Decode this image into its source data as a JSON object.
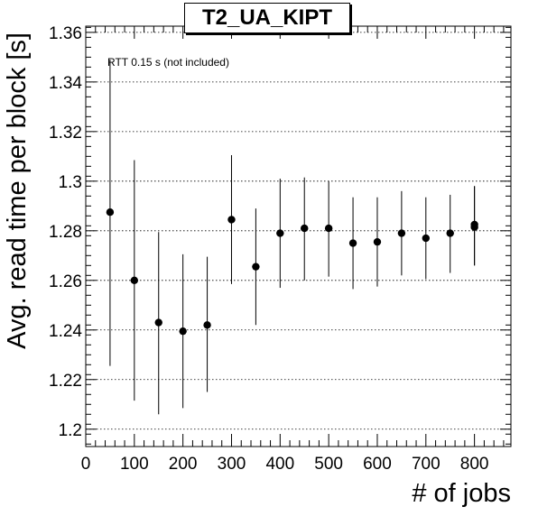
{
  "chart_data": {
    "type": "scatter",
    "title": "T2_UA_KIPT",
    "annotation": "RTT 0.15 s (not included)",
    "xlabel": "# of jobs",
    "ylabel": "Avg. read time per block [s]",
    "xlim": [
      0,
      875
    ],
    "ylim": [
      1.193,
      1.3625
    ],
    "x_ticks": [
      0,
      100,
      200,
      300,
      400,
      500,
      600,
      700,
      800
    ],
    "y_ticks": [
      1.2,
      1.22,
      1.24,
      1.26,
      1.28,
      1.3,
      1.32,
      1.34,
      1.36
    ],
    "y_grid": true,
    "x_grid": false,
    "marker_color": "#000000",
    "points": [
      {
        "x": 50,
        "y": 1.2875,
        "y_low": 1.2255,
        "y_high": 1.349
      },
      {
        "x": 100,
        "y": 1.26,
        "y_low": 1.2115,
        "y_high": 1.3085
      },
      {
        "x": 150,
        "y": 1.243,
        "y_low": 1.206,
        "y_high": 1.2795
      },
      {
        "x": 200,
        "y": 1.2395,
        "y_low": 1.2085,
        "y_high": 1.2705
      },
      {
        "x": 250,
        "y": 1.242,
        "y_low": 1.215,
        "y_high": 1.2695
      },
      {
        "x": 300,
        "y": 1.2845,
        "y_low": 1.2585,
        "y_high": 1.3105
      },
      {
        "x": 350,
        "y": 1.2655,
        "y_low": 1.242,
        "y_high": 1.289
      },
      {
        "x": 400,
        "y": 1.279,
        "y_low": 1.257,
        "y_high": 1.301
      },
      {
        "x": 450,
        "y": 1.281,
        "y_low": 1.26,
        "y_high": 1.3015
      },
      {
        "x": 500,
        "y": 1.281,
        "y_low": 1.2615,
        "y_high": 1.3
      },
      {
        "x": 550,
        "y": 1.275,
        "y_low": 1.2565,
        "y_high": 1.2935
      },
      {
        "x": 600,
        "y": 1.2755,
        "y_low": 1.2575,
        "y_high": 1.2935
      },
      {
        "x": 650,
        "y": 1.279,
        "y_low": 1.262,
        "y_high": 1.296
      },
      {
        "x": 700,
        "y": 1.277,
        "y_low": 1.2605,
        "y_high": 1.2935
      },
      {
        "x": 750,
        "y": 1.279,
        "y_low": 1.263,
        "y_high": 1.2945
      },
      {
        "x": 800,
        "y": 1.2815,
        "y_low": 1.266,
        "y_high": 1.298
      },
      {
        "x": 800,
        "y": 1.2825,
        "y_low": 1.266,
        "y_high": 1.298
      }
    ]
  }
}
